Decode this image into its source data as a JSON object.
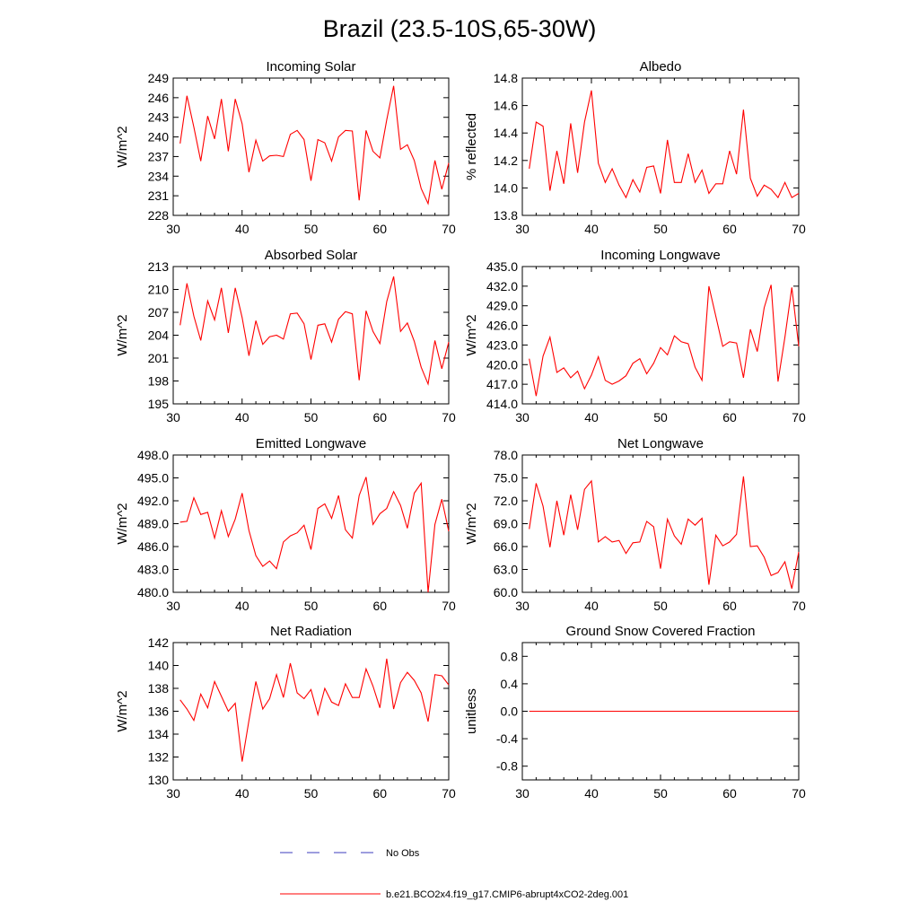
{
  "figure": {
    "title": "Brazil (23.5-10S,65-30W)",
    "legend": [
      {
        "label": "No Obs",
        "color": "#3b3bbd",
        "style": "dashed"
      },
      {
        "label": "b.e21.BCO2x4.f19_g17.CMIP6-abrupt4xCO2-2deg.001",
        "color": "#ff0000",
        "style": "solid"
      }
    ],
    "series_color": "#ff0000"
  },
  "chart_data": [
    {
      "type": "line",
      "title": "Incoming Solar",
      "ylabel": "W/m^2",
      "xlim": [
        30,
        70
      ],
      "ylim": [
        228,
        249
      ],
      "yticks": [
        "228",
        "231",
        "234",
        "237",
        "240",
        "243",
        "246",
        "249"
      ],
      "xticks": [
        "30",
        "40",
        "50",
        "60",
        "70"
      ],
      "x": [
        31,
        32,
        33,
        34,
        35,
        36,
        37,
        38,
        39,
        40,
        41,
        42,
        43,
        44,
        45,
        46,
        47,
        48,
        49,
        50,
        51,
        52,
        53,
        54,
        55,
        56,
        57,
        58,
        59,
        60,
        61,
        62,
        63,
        64,
        65,
        66,
        67,
        68,
        69,
        70
      ],
      "series": [
        {
          "values": [
            239.0,
            246.3,
            241.5,
            236.3,
            243.2,
            239.7,
            245.8,
            237.8,
            245.8,
            242.0,
            234.6,
            239.5,
            236.3,
            237.1,
            237.2,
            237.0,
            240.4,
            241.0,
            239.6,
            233.3,
            239.6,
            239.1,
            236.3,
            240.0,
            241.0,
            240.9,
            230.3,
            241.0,
            237.8,
            236.8,
            242.6,
            247.8,
            238.1,
            238.8,
            236.4,
            232.1,
            229.8,
            236.4,
            232.0,
            236.0
          ]
        }
      ]
    },
    {
      "type": "line",
      "title": "Albedo",
      "ylabel": "% reflected",
      "xlim": [
        30,
        70
      ],
      "ylim": [
        13.8,
        14.8
      ],
      "yticks": [
        "13.8",
        "14.0",
        "14.2",
        "14.4",
        "14.6",
        "14.8"
      ],
      "xticks": [
        "30",
        "40",
        "50",
        "60",
        "70"
      ],
      "x": [
        31,
        32,
        33,
        34,
        35,
        36,
        37,
        38,
        39,
        40,
        41,
        42,
        43,
        44,
        45,
        46,
        47,
        48,
        49,
        50,
        51,
        52,
        53,
        54,
        55,
        56,
        57,
        58,
        59,
        60,
        61,
        62,
        63,
        64,
        65,
        66,
        67,
        68,
        69,
        70
      ],
      "series": [
        {
          "values": [
            14.14,
            14.48,
            14.45,
            13.98,
            14.27,
            14.03,
            14.47,
            14.11,
            14.48,
            14.71,
            14.18,
            14.04,
            14.14,
            14.02,
            13.93,
            14.06,
            13.97,
            14.15,
            14.16,
            13.96,
            14.35,
            14.04,
            14.04,
            14.25,
            14.04,
            14.13,
            13.96,
            14.03,
            14.03,
            14.27,
            14.1,
            14.57,
            14.07,
            13.94,
            14.02,
            13.99,
            13.93,
            14.04,
            13.93,
            13.96
          ]
        }
      ]
    },
    {
      "type": "line",
      "title": "Absorbed Solar",
      "ylabel": "W/m^2",
      "xlim": [
        30,
        70
      ],
      "ylim": [
        195,
        213
      ],
      "yticks": [
        "195",
        "198",
        "201",
        "204",
        "207",
        "210",
        "213"
      ],
      "xticks": [
        "30",
        "40",
        "50",
        "60",
        "70"
      ],
      "x": [
        31,
        32,
        33,
        34,
        35,
        36,
        37,
        38,
        39,
        40,
        41,
        42,
        43,
        44,
        45,
        46,
        47,
        48,
        49,
        50,
        51,
        52,
        53,
        54,
        55,
        56,
        57,
        58,
        59,
        60,
        61,
        62,
        63,
        64,
        65,
        66,
        67,
        68,
        69,
        70
      ],
      "series": [
        {
          "values": [
            205.3,
            210.8,
            206.5,
            203.3,
            208.5,
            206.0,
            210.2,
            204.3,
            210.2,
            206.3,
            201.3,
            205.9,
            202.8,
            203.8,
            204.0,
            203.5,
            206.8,
            206.9,
            205.5,
            200.8,
            205.3,
            205.5,
            203.1,
            206.1,
            207.1,
            206.8,
            198.1,
            207.2,
            204.5,
            202.9,
            208.4,
            211.7,
            204.5,
            205.6,
            203.2,
            199.8,
            197.6,
            203.3,
            199.6,
            203.1
          ]
        }
      ]
    },
    {
      "type": "line",
      "title": "Incoming Longwave",
      "ylabel": "W/m^2",
      "xlim": [
        30,
        70
      ],
      "ylim": [
        414.0,
        435.0
      ],
      "yticks": [
        "414.0",
        "417.0",
        "420.0",
        "423.0",
        "426.0",
        "429.0",
        "432.0",
        "435.0"
      ],
      "xticks": [
        "30",
        "40",
        "50",
        "60",
        "70"
      ],
      "x": [
        31,
        32,
        33,
        34,
        35,
        36,
        37,
        38,
        39,
        40,
        41,
        42,
        43,
        44,
        45,
        46,
        47,
        48,
        49,
        50,
        51,
        52,
        53,
        54,
        55,
        56,
        57,
        58,
        59,
        60,
        61,
        62,
        63,
        64,
        65,
        66,
        67,
        68,
        69,
        70
      ],
      "series": [
        {
          "values": [
            420.9,
            415.2,
            421.3,
            424.2,
            418.8,
            419.5,
            418.0,
            419.0,
            416.3,
            418.4,
            421.2,
            417.6,
            417.0,
            417.5,
            418.3,
            420.2,
            420.9,
            418.6,
            420.2,
            422.6,
            421.5,
            424.4,
            423.5,
            423.2,
            419.6,
            417.6,
            432.0,
            427.4,
            422.8,
            423.5,
            423.3,
            418.0,
            425.4,
            422.0,
            428.7,
            432.2,
            417.4,
            424.2,
            431.8,
            422.8
          ]
        }
      ]
    },
    {
      "type": "line",
      "title": "Emitted Longwave",
      "ylabel": "W/m^2",
      "xlim": [
        30,
        70
      ],
      "ylim": [
        480.0,
        498.0
      ],
      "yticks": [
        "480.0",
        "483.0",
        "486.0",
        "489.0",
        "492.0",
        "495.0",
        "498.0"
      ],
      "xticks": [
        "30",
        "40",
        "50",
        "60",
        "70"
      ],
      "x": [
        31,
        32,
        33,
        34,
        35,
        36,
        37,
        38,
        39,
        40,
        41,
        42,
        43,
        44,
        45,
        46,
        47,
        48,
        49,
        50,
        51,
        52,
        53,
        54,
        55,
        56,
        57,
        58,
        59,
        60,
        61,
        62,
        63,
        64,
        65,
        66,
        67,
        68,
        69,
        70
      ],
      "series": [
        {
          "values": [
            489.2,
            489.3,
            492.4,
            490.2,
            490.5,
            487.1,
            490.7,
            487.3,
            489.6,
            493.0,
            488.1,
            484.8,
            483.4,
            484.1,
            483.1,
            486.6,
            487.4,
            487.8,
            488.8,
            485.6,
            491.0,
            491.6,
            489.7,
            492.7,
            488.2,
            487.1,
            492.7,
            495.1,
            488.9,
            490.3,
            491.0,
            493.2,
            491.4,
            488.4,
            493.0,
            494.3,
            480.0,
            488.9,
            492.2,
            488.0
          ]
        }
      ]
    },
    {
      "type": "line",
      "title": "Net Longwave",
      "ylabel": "W/m^2",
      "xlim": [
        30,
        70
      ],
      "ylim": [
        60.0,
        78.0
      ],
      "yticks": [
        "60.0",
        "63.0",
        "66.0",
        "69.0",
        "72.0",
        "75.0",
        "78.0"
      ],
      "xticks": [
        "30",
        "40",
        "50",
        "60",
        "70"
      ],
      "x": [
        31,
        32,
        33,
        34,
        35,
        36,
        37,
        38,
        39,
        40,
        41,
        42,
        43,
        44,
        45,
        46,
        47,
        48,
        49,
        50,
        51,
        52,
        53,
        54,
        55,
        56,
        57,
        58,
        59,
        60,
        61,
        62,
        63,
        64,
        65,
        66,
        67,
        68,
        69,
        70
      ],
      "series": [
        {
          "values": [
            68.3,
            74.3,
            71.3,
            65.9,
            72.0,
            67.5,
            72.8,
            68.2,
            73.5,
            74.6,
            66.6,
            67.3,
            66.6,
            66.8,
            65.1,
            66.5,
            66.6,
            69.3,
            68.6,
            63.1,
            69.6,
            67.4,
            66.3,
            69.6,
            68.8,
            69.7,
            61.0,
            67.5,
            66.1,
            66.6,
            67.6,
            75.2,
            66.0,
            66.1,
            64.6,
            62.2,
            62.6,
            64.0,
            60.5,
            65.3
          ]
        }
      ]
    },
    {
      "type": "line",
      "title": "Net Radiation",
      "ylabel": "W/m^2",
      "xlim": [
        30,
        70
      ],
      "ylim": [
        130,
        142
      ],
      "yticks": [
        "130",
        "132",
        "134",
        "136",
        "138",
        "140",
        "142"
      ],
      "xticks": [
        "30",
        "40",
        "50",
        "60",
        "70"
      ],
      "x": [
        31,
        32,
        33,
        34,
        35,
        36,
        37,
        38,
        39,
        40,
        41,
        42,
        43,
        44,
        45,
        46,
        47,
        48,
        49,
        50,
        51,
        52,
        53,
        54,
        55,
        56,
        57,
        58,
        59,
        60,
        61,
        62,
        63,
        64,
        65,
        66,
        67,
        68,
        69,
        70
      ],
      "series": [
        {
          "values": [
            137.0,
            136.2,
            135.2,
            137.5,
            136.3,
            138.6,
            137.3,
            136.0,
            136.7,
            131.6,
            135.2,
            138.6,
            136.2,
            137.1,
            139.2,
            137.2,
            140.2,
            137.6,
            137.1,
            137.9,
            135.7,
            138.0,
            136.8,
            136.5,
            138.4,
            137.2,
            137.2,
            139.7,
            138.2,
            136.3,
            140.6,
            136.2,
            138.5,
            139.4,
            138.7,
            137.6,
            135.1,
            139.2,
            139.1,
            138.3
          ]
        }
      ]
    },
    {
      "type": "line",
      "title": "Ground Snow Covered Fraction",
      "ylabel": "unitless",
      "xlim": [
        30,
        70
      ],
      "ylim": [
        -1.0,
        1.0
      ],
      "yticks": [
        "-0.8",
        "-0.4",
        "0.0",
        "0.4",
        "0.8"
      ],
      "xticks": [
        "30",
        "40",
        "50",
        "60",
        "70"
      ],
      "x": [
        31,
        70
      ],
      "series": [
        {
          "values": [
            0.0,
            0.0
          ]
        }
      ]
    }
  ]
}
